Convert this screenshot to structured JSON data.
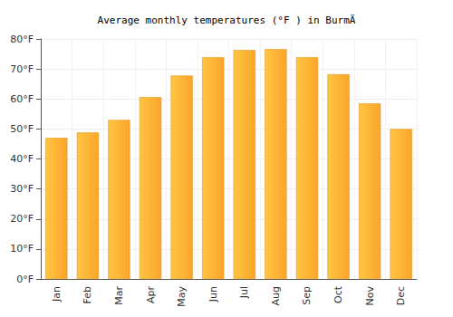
{
  "chart_data": {
    "type": "bar",
    "title": "Average monthly temperatures (°F ) in BurmÄ",
    "categories": [
      "Jan",
      "Feb",
      "Mar",
      "Apr",
      "May",
      "Jun",
      "Jul",
      "Aug",
      "Sep",
      "Oct",
      "Nov",
      "Dec"
    ],
    "values": [
      47,
      48.8,
      53,
      60.6,
      67.8,
      73.9,
      76.3,
      76.6,
      73.9,
      68.2,
      58.5,
      50
    ],
    "color": "#fba52a",
    "ylim": [
      0,
      80
    ],
    "yticks": [
      {
        "value": 0,
        "label": "0°F"
      },
      {
        "value": 10,
        "label": "10°F"
      },
      {
        "value": 20,
        "label": "20°F"
      },
      {
        "value": 30,
        "label": "30°F"
      },
      {
        "value": 40,
        "label": "40°F"
      },
      {
        "value": 50,
        "label": "50°F"
      },
      {
        "value": 60,
        "label": "60°F"
      },
      {
        "value": 70,
        "label": "70°F"
      },
      {
        "value": 80,
        "label": "80°F"
      }
    ],
    "grid": true
  }
}
